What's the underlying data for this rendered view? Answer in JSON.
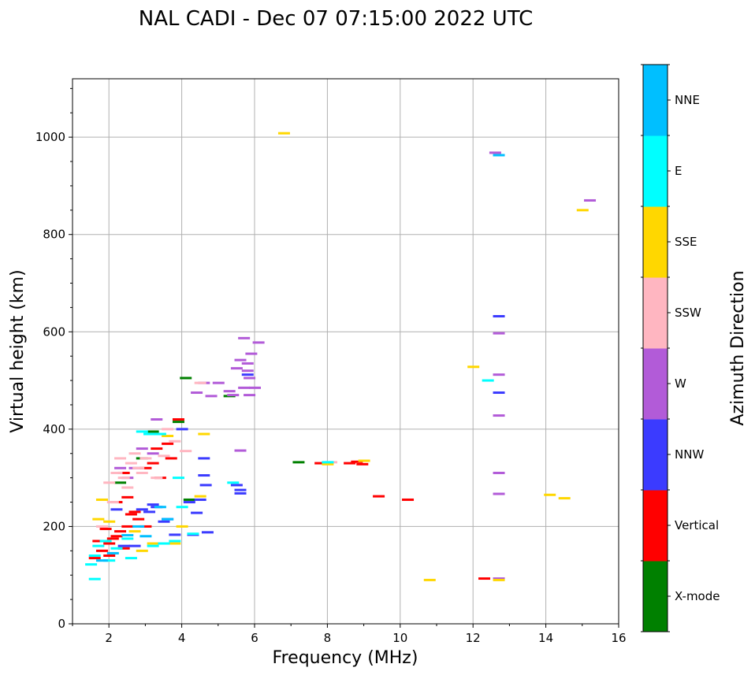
{
  "chart_data": {
    "type": "scatter",
    "title": "NAL CADI - Dec 07 07:15:00 2022 UTC",
    "xlabel": "Frequency (MHz)",
    "ylabel": "Virtual height (km)",
    "xlim": [
      1,
      16
    ],
    "ylim": [
      0,
      1120
    ],
    "xticks": [
      2,
      4,
      6,
      8,
      10,
      12,
      14,
      16
    ],
    "yticks": [
      0,
      200,
      400,
      600,
      800,
      1000
    ],
    "grid": true,
    "colorbar": {
      "label": "Azimuth Direction",
      "categories": [
        {
          "name": "X-mode",
          "color": "#008000"
        },
        {
          "name": "Vertical",
          "color": "#ff0000"
        },
        {
          "name": "NNW",
          "color": "#3b3bff"
        },
        {
          "name": "W",
          "color": "#b25bd8"
        },
        {
          "name": "SSW",
          "color": "#ffb6c1"
        },
        {
          "name": "SSE",
          "color": "#ffd700"
        },
        {
          "name": "E",
          "color": "#00ffff"
        },
        {
          "name": "NNE",
          "color": "#00bfff"
        }
      ]
    },
    "series": [
      {
        "name": "X-mode",
        "points": [
          [
            7.2,
            332
          ],
          [
            4.1,
            505
          ],
          [
            3.9,
            415
          ],
          [
            3.2,
            395
          ],
          [
            2.9,
            340
          ],
          [
            4.2,
            255
          ],
          [
            2.3,
            290
          ],
          [
            5.3,
            468
          ]
        ]
      },
      {
        "name": "Vertical",
        "points": [
          [
            12.3,
            93
          ],
          [
            9.4,
            262
          ],
          [
            10.2,
            255
          ],
          [
            8.8,
            333
          ],
          [
            8.6,
            330
          ],
          [
            7.8,
            330
          ],
          [
            8.95,
            328
          ],
          [
            2.2,
            180
          ],
          [
            2.1,
            175
          ],
          [
            2.3,
            190
          ],
          [
            2.0,
            165
          ],
          [
            2.5,
            200
          ],
          [
            1.8,
            150
          ],
          [
            1.6,
            135
          ],
          [
            2.2,
            250
          ],
          [
            2.5,
            260
          ],
          [
            2.8,
            215
          ],
          [
            3.0,
            320
          ],
          [
            3.2,
            330
          ],
          [
            3.6,
            370
          ],
          [
            3.3,
            360
          ],
          [
            3.9,
            420
          ],
          [
            2.6,
            225
          ],
          [
            2.4,
            310
          ],
          [
            1.7,
            170
          ],
          [
            2.0,
            140
          ],
          [
            2.4,
            155
          ],
          [
            3.0,
            200
          ],
          [
            2.7,
            230
          ],
          [
            1.9,
            195
          ],
          [
            3.4,
            300
          ],
          [
            3.7,
            340
          ]
        ]
      },
      {
        "name": "NNW",
        "points": [
          [
            12.7,
            632
          ],
          [
            12.7,
            475
          ],
          [
            5.8,
            512
          ],
          [
            4.6,
            305
          ],
          [
            4.65,
            285
          ],
          [
            5.6,
            275
          ],
          [
            5.6,
            268
          ],
          [
            4.7,
            188
          ],
          [
            4.4,
            228
          ],
          [
            4.3,
            183
          ],
          [
            3.6,
            215
          ],
          [
            3.1,
            230
          ],
          [
            2.4,
            160
          ],
          [
            2.7,
            160
          ],
          [
            3.3,
            240
          ],
          [
            4.2,
            250
          ],
          [
            4.6,
            340
          ],
          [
            5.5,
            285
          ],
          [
            4.0,
            400
          ],
          [
            2.9,
            235
          ],
          [
            3.5,
            210
          ],
          [
            2.2,
            235
          ],
          [
            3.8,
            183
          ],
          [
            3.2,
            245
          ],
          [
            4.5,
            255
          ]
        ]
      },
      {
        "name": "W",
        "points": [
          [
            12.6,
            968
          ],
          [
            15.2,
            870
          ],
          [
            12.7,
            597
          ],
          [
            12.7,
            512
          ],
          [
            12.7,
            428
          ],
          [
            12.7,
            310
          ],
          [
            12.7,
            267
          ],
          [
            12.7,
            93
          ],
          [
            5.7,
            587
          ],
          [
            5.9,
            555
          ],
          [
            6.1,
            578
          ],
          [
            5.8,
            535
          ],
          [
            5.6,
            542
          ],
          [
            5.5,
            525
          ],
          [
            5.8,
            520
          ],
          [
            5.85,
            505
          ],
          [
            6.0,
            485
          ],
          [
            5.7,
            485
          ],
          [
            5.85,
            470
          ],
          [
            5.4,
            470
          ],
          [
            5.3,
            478
          ],
          [
            5.0,
            495
          ],
          [
            4.6,
            495
          ],
          [
            4.8,
            468
          ],
          [
            4.4,
            475
          ],
          [
            5.6,
            356
          ],
          [
            3.3,
            420
          ],
          [
            2.9,
            360
          ],
          [
            3.2,
            350
          ],
          [
            2.7,
            320
          ],
          [
            2.5,
            300
          ],
          [
            2.3,
            320
          ]
        ]
      },
      {
        "name": "SSW",
        "points": [
          [
            8.1,
            332
          ],
          [
            2.6,
            330
          ],
          [
            2.8,
            320
          ],
          [
            2.2,
            310
          ],
          [
            2.4,
            300
          ],
          [
            3.0,
            340
          ],
          [
            2.0,
            290
          ],
          [
            2.5,
            280
          ],
          [
            3.3,
            300
          ],
          [
            4.5,
            495
          ],
          [
            2.7,
            350
          ],
          [
            3.5,
            345
          ],
          [
            2.9,
            310
          ],
          [
            2.1,
            250
          ],
          [
            1.8,
            200
          ],
          [
            3.6,
            400
          ],
          [
            3.8,
            375
          ],
          [
            4.1,
            355
          ],
          [
            2.3,
            340
          ]
        ]
      },
      {
        "name": "SSE",
        "points": [
          [
            6.8,
            1008
          ],
          [
            15.0,
            850
          ],
          [
            14.1,
            265
          ],
          [
            14.5,
            258
          ],
          [
            12.0,
            528
          ],
          [
            10.8,
            90
          ],
          [
            12.7,
            90
          ],
          [
            9.0,
            335
          ],
          [
            8.0,
            328
          ],
          [
            4.6,
            390
          ],
          [
            4.5,
            262
          ],
          [
            3.8,
            165
          ],
          [
            3.2,
            165
          ],
          [
            2.7,
            190
          ],
          [
            2.0,
            210
          ],
          [
            1.7,
            215
          ],
          [
            1.8,
            255
          ],
          [
            3.6,
            386
          ],
          [
            2.9,
            150
          ],
          [
            4.0,
            200
          ]
        ]
      },
      {
        "name": "E",
        "points": [
          [
            12.4,
            500
          ],
          [
            8.0,
            332
          ],
          [
            5.4,
            290
          ],
          [
            1.6,
            92
          ],
          [
            1.5,
            122
          ],
          [
            1.6,
            140
          ],
          [
            1.7,
            160
          ],
          [
            1.9,
            170
          ],
          [
            2.2,
            155
          ],
          [
            2.5,
            175
          ],
          [
            3.2,
            160
          ],
          [
            3.5,
            165
          ],
          [
            3.8,
            170
          ],
          [
            4.3,
            185
          ],
          [
            4.0,
            240
          ],
          [
            2.9,
            395
          ],
          [
            3.1,
            390
          ],
          [
            3.4,
            390
          ],
          [
            3.9,
            300
          ],
          [
            2.6,
            135
          ],
          [
            2.0,
            130
          ]
        ]
      },
      {
        "name": "NNE",
        "points": [
          [
            12.7,
            963
          ],
          [
            3.6,
            215
          ],
          [
            3.4,
            240
          ],
          [
            2.8,
            200
          ],
          [
            2.5,
            182
          ],
          [
            3.0,
            180
          ],
          [
            2.1,
            145
          ],
          [
            1.8,
            130
          ]
        ]
      }
    ]
  }
}
